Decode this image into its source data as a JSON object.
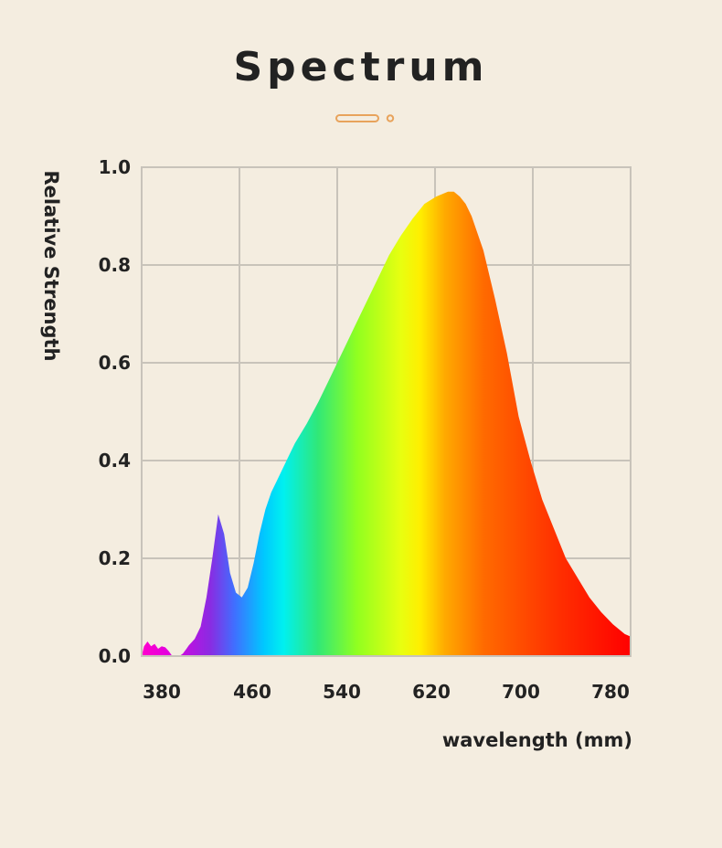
{
  "chart_data": {
    "type": "area",
    "title": "Spectrum",
    "xlabel": "wavelength (mm)",
    "ylabel": "Relative Strength",
    "xticks": [
      "380",
      "460",
      "540",
      "620",
      "700",
      "780"
    ],
    "yticks": [
      "0.0",
      "0.2",
      "0.4",
      "0.6",
      "0.8",
      "1.0"
    ],
    "ylim": [
      0,
      1.0
    ],
    "grid": true,
    "fill": "rainbow gradient by wavelength",
    "accent_color": "#e8a35c",
    "series": [
      {
        "x": [
          380,
          382,
          385,
          388,
          391,
          394,
          397,
          400,
          403,
          406,
          409,
          412,
          415,
          418,
          420,
          425,
          430,
          435,
          440,
          445,
          450,
          455,
          460,
          465,
          470,
          475,
          480,
          485,
          490,
          495,
          500,
          505,
          510,
          515,
          520,
          530,
          540,
          550,
          560,
          570,
          580,
          590,
          600,
          610,
          620,
          630,
          640,
          645,
          650,
          655,
          660,
          670,
          680,
          690,
          700,
          710,
          720,
          730,
          740,
          750,
          760,
          770,
          780,
          790,
          795
        ],
        "y": [
          0.0,
          0.02,
          0.03,
          0.02,
          0.025,
          0.015,
          0.02,
          0.018,
          0.01,
          0.0,
          0.0,
          0.0,
          0.005,
          0.015,
          0.022,
          0.035,
          0.06,
          0.12,
          0.2,
          0.29,
          0.25,
          0.17,
          0.13,
          0.12,
          0.14,
          0.19,
          0.25,
          0.3,
          0.335,
          0.36,
          0.385,
          0.41,
          0.435,
          0.455,
          0.475,
          0.52,
          0.57,
          0.62,
          0.67,
          0.72,
          0.77,
          0.82,
          0.86,
          0.895,
          0.925,
          0.94,
          0.95,
          0.95,
          0.94,
          0.925,
          0.9,
          0.83,
          0.73,
          0.62,
          0.49,
          0.4,
          0.32,
          0.26,
          0.2,
          0.16,
          0.12,
          0.09,
          0.065,
          0.045,
          0.04
        ]
      }
    ]
  }
}
